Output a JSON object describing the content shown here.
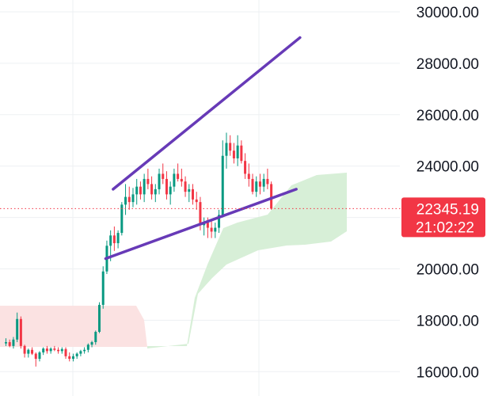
{
  "chart_data": {
    "type": "candlestick",
    "y_axis": {
      "position": "right",
      "ticks": [
        16000,
        18000,
        20000,
        22000,
        24000,
        26000,
        28000,
        30000
      ],
      "tick_labels": [
        "16000.00",
        "18000.00",
        "20000.00",
        "",
        "24000.00",
        "26000.00",
        "28000.00",
        "30000.00"
      ],
      "range": [
        15500,
        30500
      ]
    },
    "current_price": {
      "value": 22345.19,
      "label": "22345.19",
      "countdown": "21:02:22",
      "color": "#f23645"
    },
    "colors": {
      "up": "#089981",
      "down": "#f23645",
      "trendline": "#673ab7",
      "cloud_bull": "#d7efd7",
      "cloud_bear": "#fbe2e2",
      "grid": "#eef0f3"
    },
    "trendlines": [
      {
        "name": "upper channel line",
        "from": {
          "bar": 29,
          "price": 23100
        },
        "to": {
          "bar": 79,
          "price": 29000
        }
      },
      {
        "name": "lower channel line",
        "from": {
          "bar": 27,
          "price": 20400
        },
        "to": {
          "bar": 78,
          "price": 23100
        }
      }
    ],
    "candles": [
      [
        17100,
        17300,
        17000,
        17150
      ],
      [
        17150,
        17250,
        16950,
        17000
      ],
      [
        17000,
        17350,
        16900,
        17250
      ],
      [
        17250,
        18300,
        17150,
        18050
      ],
      [
        18050,
        18150,
        16900,
        17000
      ],
      [
        17000,
        17050,
        16550,
        16700
      ],
      [
        16700,
        16900,
        16550,
        16850
      ],
      [
        16850,
        16950,
        16650,
        16700
      ],
      [
        16700,
        16750,
        16200,
        16500
      ],
      [
        16500,
        16800,
        16400,
        16750
      ],
      [
        16750,
        16950,
        16650,
        16900
      ],
      [
        16900,
        17000,
        16700,
        16800
      ],
      [
        16800,
        16950,
        16700,
        16900
      ],
      [
        16900,
        17000,
        16800,
        16850
      ],
      [
        16850,
        16950,
        16700,
        16800
      ],
      [
        16800,
        16950,
        16700,
        16880
      ],
      [
        16880,
        16950,
        16500,
        16600
      ],
      [
        16600,
        16750,
        16400,
        16500
      ],
      [
        16500,
        16700,
        16400,
        16600
      ],
      [
        16600,
        16750,
        16500,
        16700
      ],
      [
        16700,
        16850,
        16600,
        16800
      ],
      [
        16800,
        16950,
        16700,
        16850
      ],
      [
        16850,
        17100,
        16750,
        17050
      ],
      [
        17050,
        17200,
        16950,
        17150
      ],
      [
        17150,
        17600,
        17050,
        17550
      ],
      [
        17550,
        18700,
        17500,
        18600
      ],
      [
        18600,
        20100,
        18450,
        19900
      ],
      [
        19900,
        21100,
        19800,
        20900
      ],
      [
        20900,
        21500,
        20300,
        21300
      ],
      [
        21300,
        21650,
        20700,
        21000
      ],
      [
        21000,
        21500,
        20800,
        21400
      ],
      [
        21400,
        22600,
        21300,
        22500
      ],
      [
        22500,
        23300,
        22100,
        22800
      ],
      [
        22800,
        23200,
        22300,
        22600
      ],
      [
        22600,
        23150,
        22400,
        22900
      ],
      [
        22900,
        23500,
        22500,
        23200
      ],
      [
        23200,
        23400,
        22700,
        22900
      ],
      [
        22900,
        23700,
        22600,
        23500
      ],
      [
        23500,
        23900,
        23100,
        23300
      ],
      [
        23300,
        23600,
        22700,
        22900
      ],
      [
        22900,
        23300,
        22600,
        23100
      ],
      [
        23100,
        23900,
        22900,
        23700
      ],
      [
        23700,
        24100,
        23300,
        23500
      ],
      [
        23500,
        23800,
        22700,
        22900
      ],
      [
        22900,
        23400,
        22500,
        23200
      ],
      [
        23200,
        23900,
        23000,
        23700
      ],
      [
        23700,
        24100,
        23400,
        23500
      ],
      [
        23500,
        23900,
        23200,
        23400
      ],
      [
        23400,
        23600,
        22800,
        23000
      ],
      [
        23000,
        23300,
        22600,
        23100
      ],
      [
        23100,
        23300,
        22500,
        22700
      ],
      [
        22700,
        23000,
        22300,
        22600
      ],
      [
        22600,
        22800,
        21500,
        21700
      ],
      [
        21700,
        22000,
        21300,
        21800
      ],
      [
        21800,
        22000,
        21200,
        21600
      ],
      [
        21600,
        21900,
        21200,
        21450
      ],
      [
        21450,
        21800,
        21200,
        21600
      ],
      [
        21600,
        22300,
        21400,
        22100
      ],
      [
        22100,
        25000,
        22000,
        24400
      ],
      [
        24400,
        25300,
        23900,
        24900
      ],
      [
        24900,
        25200,
        24400,
        24600
      ],
      [
        24600,
        24900,
        24100,
        24300
      ],
      [
        24300,
        25200,
        24000,
        24800
      ],
      [
        24800,
        25000,
        24100,
        24200
      ],
      [
        24200,
        24500,
        23500,
        23700
      ],
      [
        23700,
        24100,
        23200,
        23500
      ],
      [
        23500,
        23700,
        22900,
        23000
      ],
      [
        23000,
        23600,
        22800,
        23400
      ],
      [
        23400,
        23700,
        22900,
        23200
      ],
      [
        23200,
        23700,
        23000,
        23500
      ],
      [
        23500,
        23900,
        23100,
        23300
      ],
      [
        23300,
        23400,
        22300,
        22345.19
      ]
    ]
  }
}
